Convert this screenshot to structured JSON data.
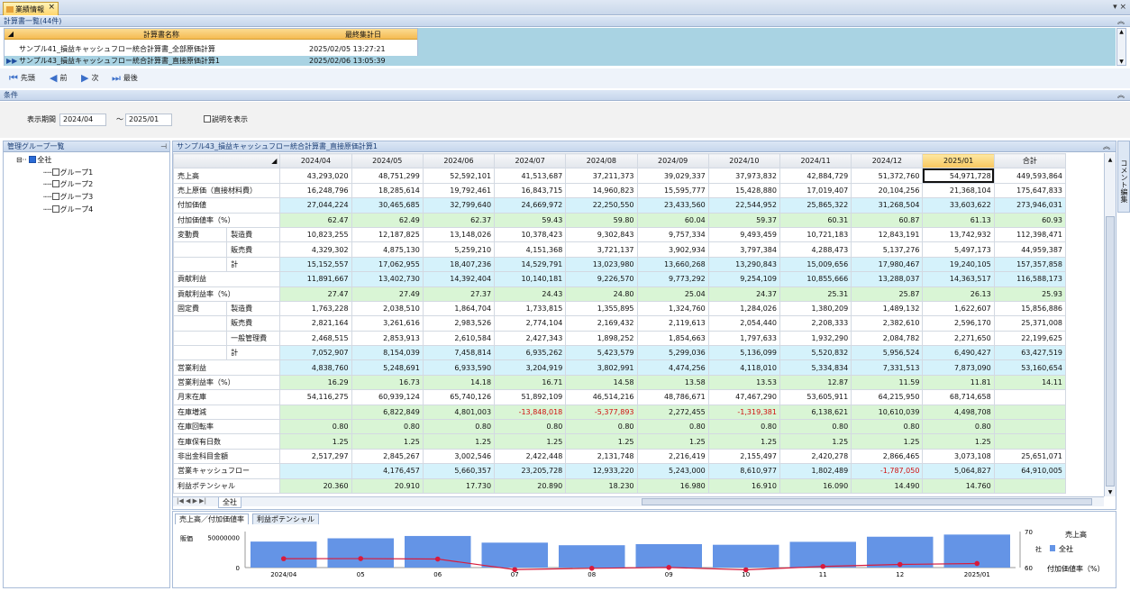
{
  "app": {
    "doc_tab_label": "業績情報",
    "win_buttons": "▾ ×"
  },
  "calc_list": {
    "section_title": "計算書一覧(44件)",
    "columns": [
      "計算書名称",
      "最終集計日"
    ],
    "rows": [
      {
        "name": "サンプル41_損益キャッシュフロー統合計算書_全部原価計算",
        "date": "2025/02/05 13:27:21",
        "selected": false
      },
      {
        "name": "サンプル43_損益キャッシュフロー統合計算書_直接原価計算1",
        "date": "2025/02/06 13:05:39",
        "selected": true
      }
    ]
  },
  "nav": {
    "first": "先頭",
    "prev": "前",
    "next": "次",
    "last": "最後"
  },
  "conditions": {
    "section_title": "条件",
    "period_label": "表示期間",
    "from": "2024/04",
    "tilde": "～",
    "to": "2025/01",
    "show_desc_label": "説明を表示"
  },
  "group_panel": {
    "title": "管理グループ一覧",
    "root": "全社",
    "items": [
      "グループ1",
      "グループ2",
      "グループ3",
      "グループ4"
    ]
  },
  "main_panel": {
    "title": "サンプル43_損益キャッシュフロー統合計算書_直接原価計算1",
    "comment_tab": "コメント編集",
    "sheet_tab": "全社"
  },
  "grid": {
    "columns": [
      "2024/04",
      "2024/05",
      "2024/06",
      "2024/07",
      "2024/08",
      "2024/09",
      "2024/10",
      "2024/11",
      "2024/12",
      "2025/01",
      "合計"
    ],
    "rows": [
      {
        "label": "売上高",
        "sub": "",
        "bg": "w",
        "values": [
          "43,293,020",
          "48,751,299",
          "52,592,101",
          "41,513,687",
          "37,211,373",
          "39,029,337",
          "37,973,832",
          "42,884,729",
          "51,372,760",
          "54,971,728",
          "449,593,864"
        ]
      },
      {
        "label": "売上原価（直接材料費）",
        "sub": "",
        "bg": "w",
        "values": [
          "16,248,796",
          "18,285,614",
          "19,792,461",
          "16,843,715",
          "14,960,823",
          "15,595,777",
          "15,428,880",
          "17,019,407",
          "20,104,256",
          "21,368,104",
          "175,647,833"
        ]
      },
      {
        "label": "付加価値",
        "sub": "",
        "bg": "b",
        "values": [
          "27,044,224",
          "30,465,685",
          "32,799,640",
          "24,669,972",
          "22,250,550",
          "23,433,560",
          "22,544,952",
          "25,865,322",
          "31,268,504",
          "33,603,622",
          "273,946,031"
        ]
      },
      {
        "label": "付加価値率（%）",
        "sub": "",
        "bg": "g",
        "values": [
          "62.47",
          "62.49",
          "62.37",
          "59.43",
          "59.80",
          "60.04",
          "59.37",
          "60.31",
          "60.87",
          "61.13",
          "60.93"
        ]
      },
      {
        "label": "変動費",
        "sub": "製造費",
        "bg": "w",
        "values": [
          "10,823,255",
          "12,187,825",
          "13,148,026",
          "10,378,423",
          "9,302,843",
          "9,757,334",
          "9,493,459",
          "10,721,183",
          "12,843,191",
          "13,742,932",
          "112,398,471"
        ]
      },
      {
        "label": "",
        "sub": "販売費",
        "bg": "w",
        "values": [
          "4,329,302",
          "4,875,130",
          "5,259,210",
          "4,151,368",
          "3,721,137",
          "3,902,934",
          "3,797,384",
          "4,288,473",
          "5,137,276",
          "5,497,173",
          "44,959,387"
        ]
      },
      {
        "label": "",
        "sub": "計",
        "bg": "b",
        "values": [
          "15,152,557",
          "17,062,955",
          "18,407,236",
          "14,529,791",
          "13,023,980",
          "13,660,268",
          "13,290,843",
          "15,009,656",
          "17,980,467",
          "19,240,105",
          "157,357,858"
        ]
      },
      {
        "label": "貢献利益",
        "sub": "",
        "bg": "b",
        "values": [
          "11,891,667",
          "13,402,730",
          "14,392,404",
          "10,140,181",
          "9,226,570",
          "9,773,292",
          "9,254,109",
          "10,855,666",
          "13,288,037",
          "14,363,517",
          "116,588,173"
        ]
      },
      {
        "label": "貢献利益率（%）",
        "sub": "",
        "bg": "g",
        "values": [
          "27.47",
          "27.49",
          "27.37",
          "24.43",
          "24.80",
          "25.04",
          "24.37",
          "25.31",
          "25.87",
          "26.13",
          "25.93"
        ]
      },
      {
        "label": "固定費",
        "sub": "製造費",
        "bg": "w",
        "values": [
          "1,763,228",
          "2,038,510",
          "1,864,704",
          "1,733,815",
          "1,355,895",
          "1,324,760",
          "1,284,026",
          "1,380,209",
          "1,489,132",
          "1,622,607",
          "15,856,886"
        ]
      },
      {
        "label": "",
        "sub": "販売費",
        "bg": "w",
        "values": [
          "2,821,164",
          "3,261,616",
          "2,983,526",
          "2,774,104",
          "2,169,432",
          "2,119,613",
          "2,054,440",
          "2,208,333",
          "2,382,610",
          "2,596,170",
          "25,371,008"
        ]
      },
      {
        "label": "",
        "sub": "一般管理費",
        "bg": "w",
        "values": [
          "2,468,515",
          "2,853,913",
          "2,610,584",
          "2,427,343",
          "1,898,252",
          "1,854,663",
          "1,797,633",
          "1,932,290",
          "2,084,782",
          "2,271,650",
          "22,199,625"
        ]
      },
      {
        "label": "",
        "sub": "計",
        "bg": "b",
        "values": [
          "7,052,907",
          "8,154,039",
          "7,458,814",
          "6,935,262",
          "5,423,579",
          "5,299,036",
          "5,136,099",
          "5,520,832",
          "5,956,524",
          "6,490,427",
          "63,427,519"
        ]
      },
      {
        "label": "営業利益",
        "sub": "",
        "bg": "b",
        "values": [
          "4,838,760",
          "5,248,691",
          "6,933,590",
          "3,204,919",
          "3,802,991",
          "4,474,256",
          "4,118,010",
          "5,334,834",
          "7,331,513",
          "7,873,090",
          "53,160,654"
        ]
      },
      {
        "label": "営業利益率（%）",
        "sub": "",
        "bg": "g",
        "values": [
          "16.29",
          "16.73",
          "14.18",
          "16.71",
          "14.58",
          "13.58",
          "13.53",
          "12.87",
          "11.59",
          "11.81",
          "14.11"
        ]
      },
      {
        "label": "月末在庫",
        "sub": "",
        "bg": "w",
        "values": [
          "54,116,275",
          "60,939,124",
          "65,740,126",
          "51,892,109",
          "46,514,216",
          "48,786,671",
          "47,467,290",
          "53,605,911",
          "64,215,950",
          "68,714,658",
          ""
        ]
      },
      {
        "label": "在庫増減",
        "sub": "",
        "bg": "g",
        "values": [
          "",
          "6,822,849",
          "4,801,003",
          "-13,848,018",
          "-5,377,893",
          "2,272,455",
          "-1,319,381",
          "6,138,621",
          "10,610,039",
          "4,498,708",
          ""
        ]
      },
      {
        "label": "在庫回転率",
        "sub": "",
        "bg": "g",
        "values": [
          "0.80",
          "0.80",
          "0.80",
          "0.80",
          "0.80",
          "0.80",
          "0.80",
          "0.80",
          "0.80",
          "0.80",
          ""
        ]
      },
      {
        "label": "在庫保有日数",
        "sub": "",
        "bg": "g",
        "values": [
          "1.25",
          "1.25",
          "1.25",
          "1.25",
          "1.25",
          "1.25",
          "1.25",
          "1.25",
          "1.25",
          "1.25",
          ""
        ]
      },
      {
        "label": "非出金科目金額",
        "sub": "",
        "bg": "w",
        "values": [
          "2,517,297",
          "2,845,267",
          "3,002,546",
          "2,422,448",
          "2,131,748",
          "2,216,419",
          "2,155,497",
          "2,420,278",
          "2,866,465",
          "3,073,108",
          "25,651,071"
        ]
      },
      {
        "label": "営業キャッシュフロー",
        "sub": "",
        "bg": "b",
        "values": [
          "",
          "4,176,457",
          "5,660,357",
          "23,205,728",
          "12,933,220",
          "5,243,000",
          "8,610,977",
          "1,802,489",
          "-1,787,050",
          "5,064,827",
          "64,910,005"
        ]
      },
      {
        "label": "利益ポテンシャル",
        "sub": "",
        "bg": "g",
        "values": [
          "20.360",
          "20.910",
          "17.730",
          "20.890",
          "18.230",
          "16.980",
          "16.910",
          "16.090",
          "14.490",
          "14.760",
          ""
        ]
      }
    ]
  },
  "chart_tabs": [
    "売上高／付加価値率",
    "利益ポテンシャル"
  ],
  "chart_data": {
    "type": "bar",
    "categories": [
      "2024/04",
      "05",
      "06",
      "07",
      "08",
      "09",
      "10",
      "11",
      "12",
      "2025/01"
    ],
    "series": [
      {
        "name": "売上高",
        "kind": "bar",
        "axis": "left",
        "values": [
          43293020,
          48751299,
          52592101,
          41513687,
          37211373,
          39029337,
          37973832,
          42884729,
          51372760,
          54971728
        ]
      },
      {
        "name": "付加価値率（%）",
        "kind": "line",
        "axis": "right",
        "values": [
          62.47,
          62.49,
          62.37,
          59.43,
          59.8,
          60.04,
          59.37,
          60.31,
          60.87,
          61.13
        ]
      }
    ],
    "ylabel": "販価",
    "y_ticks": [
      "50000000",
      "0"
    ],
    "ylim": [
      0,
      60000000
    ],
    "y2_ticks": [
      "70",
      "60"
    ],
    "y2lim": [
      60,
      70
    ],
    "legend": {
      "title": "売上高",
      "group": "全社",
      "group_label": "社",
      "line": "付加価値率（%）"
    },
    "colors": {
      "bar": "#6494e6",
      "line": "#d81b3c"
    }
  }
}
